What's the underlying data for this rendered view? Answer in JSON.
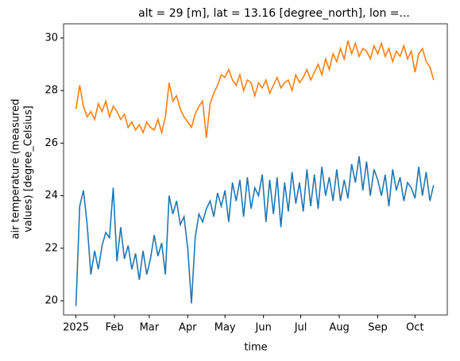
{
  "chart_data": {
    "type": "line",
    "title": "alt = 29 [m], lat = 13.16 [degree_north], lon =...",
    "xlabel": "time",
    "ylabel": [
      "air temperature (measured",
      "values) [degree_Celsius]"
    ],
    "x": [
      "2025-01-01",
      "2025-01-04",
      "2025-01-07",
      "2025-01-10",
      "2025-01-13",
      "2025-01-16",
      "2025-01-19",
      "2025-01-22",
      "2025-01-25",
      "2025-01-28",
      "2025-01-31",
      "2025-02-03",
      "2025-02-06",
      "2025-02-09",
      "2025-02-12",
      "2025-02-15",
      "2025-02-18",
      "2025-02-21",
      "2025-02-24",
      "2025-02-27",
      "2025-03-02",
      "2025-03-05",
      "2025-03-08",
      "2025-03-11",
      "2025-03-14",
      "2025-03-17",
      "2025-03-20",
      "2025-03-23",
      "2025-03-26",
      "2025-03-29",
      "2025-04-01",
      "2025-04-04",
      "2025-04-07",
      "2025-04-10",
      "2025-04-13",
      "2025-04-16",
      "2025-04-19",
      "2025-04-22",
      "2025-04-25",
      "2025-04-28",
      "2025-05-01",
      "2025-05-04",
      "2025-05-07",
      "2025-05-10",
      "2025-05-13",
      "2025-05-16",
      "2025-05-19",
      "2025-05-22",
      "2025-05-25",
      "2025-05-28",
      "2025-05-31",
      "2025-06-03",
      "2025-06-06",
      "2025-06-09",
      "2025-06-12",
      "2025-06-15",
      "2025-06-18",
      "2025-06-21",
      "2025-06-24",
      "2025-06-27",
      "2025-06-30",
      "2025-07-03",
      "2025-07-06",
      "2025-07-09",
      "2025-07-12",
      "2025-07-15",
      "2025-07-18",
      "2025-07-21",
      "2025-07-24",
      "2025-07-27",
      "2025-07-30",
      "2025-08-02",
      "2025-08-05",
      "2025-08-08",
      "2025-08-11",
      "2025-08-14",
      "2025-08-17",
      "2025-08-20",
      "2025-08-23",
      "2025-08-26",
      "2025-08-29",
      "2025-09-01",
      "2025-09-04",
      "2025-09-07",
      "2025-09-10",
      "2025-09-13",
      "2025-09-16",
      "2025-09-19",
      "2025-09-22",
      "2025-09-25",
      "2025-09-28",
      "2025-10-01",
      "2025-10-04",
      "2025-10-07",
      "2025-10-10",
      "2025-10-13",
      "2025-10-16"
    ],
    "series": [
      {
        "color": "#1f77b4",
        "values": [
          19.8,
          23.6,
          24.2,
          22.9,
          21.0,
          21.9,
          21.2,
          22.1,
          22.6,
          22.4,
          24.3,
          21.5,
          22.8,
          21.6,
          22.1,
          21.2,
          21.8,
          20.8,
          21.9,
          21.0,
          21.6,
          22.5,
          21.7,
          22.2,
          21.0,
          24.0,
          23.3,
          23.8,
          22.9,
          23.2,
          22.0,
          19.9,
          22.4,
          23.3,
          23.0,
          23.5,
          23.8,
          23.2,
          24.1,
          23.6,
          24.2,
          23.0,
          24.5,
          23.8,
          24.6,
          23.2,
          24.7,
          23.5,
          24.3,
          24.0,
          24.8,
          23.0,
          24.6,
          23.3,
          24.7,
          22.8,
          24.5,
          23.4,
          24.9,
          23.7,
          24.5,
          23.4,
          25.0,
          23.6,
          24.8,
          23.5,
          25.1,
          24.0,
          24.7,
          23.8,
          25.0,
          23.8,
          24.6,
          23.9,
          25.2,
          24.5,
          25.5,
          24.2,
          25.3,
          24.0,
          25.0,
          24.6,
          24.0,
          24.8,
          23.6,
          25.0,
          24.2,
          24.7,
          23.8,
          24.5,
          24.3,
          23.9,
          25.1,
          24.0,
          24.9,
          23.8,
          24.4
        ]
      },
      {
        "color": "#ff7f0e",
        "values": [
          27.3,
          28.2,
          27.4,
          27.0,
          27.2,
          26.9,
          27.5,
          27.2,
          27.6,
          27.0,
          27.4,
          27.2,
          26.9,
          27.1,
          26.6,
          26.8,
          26.5,
          26.7,
          26.4,
          26.8,
          26.6,
          26.5,
          26.9,
          26.4,
          27.0,
          28.3,
          27.6,
          27.8,
          27.3,
          27.0,
          26.8,
          26.6,
          27.1,
          27.4,
          27.6,
          26.2,
          27.5,
          27.9,
          28.2,
          28.6,
          28.5,
          28.8,
          28.4,
          28.2,
          28.6,
          28.0,
          28.4,
          28.3,
          27.8,
          28.3,
          28.1,
          28.4,
          27.9,
          28.2,
          28.5,
          28.1,
          28.3,
          28.4,
          28.0,
          28.6,
          28.3,
          28.5,
          28.8,
          28.4,
          28.7,
          29.0,
          28.6,
          29.2,
          28.8,
          29.4,
          29.1,
          29.6,
          29.2,
          29.9,
          29.4,
          29.8,
          29.3,
          29.6,
          29.5,
          29.2,
          29.7,
          29.4,
          29.8,
          29.3,
          29.6,
          29.1,
          29.5,
          29.3,
          29.7,
          29.2,
          29.5,
          28.7,
          29.4,
          29.6,
          29.1,
          28.9,
          28.4
        ]
      }
    ],
    "xlim": [
      "2024-12-22",
      "2025-10-27"
    ],
    "xticks": [
      {
        "value": "2025-01-01",
        "label": "2025"
      },
      {
        "value": "2025-02-01",
        "label": "Feb"
      },
      {
        "value": "2025-03-01",
        "label": "Mar"
      },
      {
        "value": "2025-04-01",
        "label": "Apr"
      },
      {
        "value": "2025-05-01",
        "label": "May"
      },
      {
        "value": "2025-06-01",
        "label": "Jun"
      },
      {
        "value": "2025-07-01",
        "label": "Jul"
      },
      {
        "value": "2025-08-01",
        "label": "Aug"
      },
      {
        "value": "2025-09-01",
        "label": "Sep"
      },
      {
        "value": "2025-10-01",
        "label": "Oct"
      }
    ],
    "ylim": [
      19.46,
      30.54
    ],
    "yticks": [
      20,
      22,
      24,
      26,
      28,
      30
    ]
  }
}
